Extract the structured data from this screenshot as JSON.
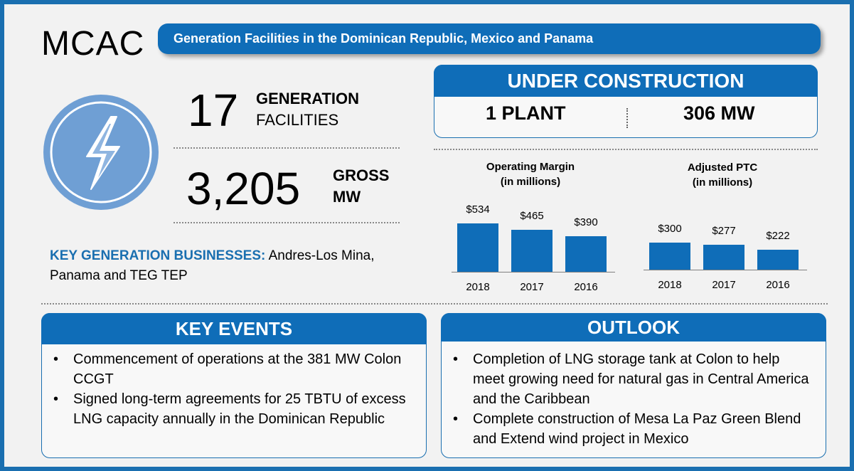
{
  "header": {
    "company": "MCAC",
    "banner": "Generation Facilities in the Dominican Republic, Mexico and Panama"
  },
  "logo": {
    "icon": "lightning-bolt-icon",
    "color": "#6f9fd4"
  },
  "stats": {
    "facilities_value": "17",
    "facilities_label_bold": "GENERATION",
    "facilities_label": "FACILITIES",
    "mw_value": "3,205",
    "mw_label_line1": "GROSS",
    "mw_label_line2": "MW"
  },
  "key_businesses": {
    "label": "KEY GENERATION BUSINESSES:",
    "text_line1": " Andres-Los Mina,",
    "text_line2": "Panama and TEG TEP"
  },
  "under_construction": {
    "title": "UNDER CONSTRUCTION",
    "plants": "1 PLANT",
    "mw": "306 MW"
  },
  "chart_data": [
    {
      "type": "bar",
      "title": "Operating Margin",
      "subtitle": "(in millions)",
      "categories": [
        "2018",
        "2017",
        "2016"
      ],
      "values": [
        534,
        465,
        390
      ],
      "labels": [
        "$534",
        "$465",
        "$390"
      ],
      "ylim": [
        0,
        600
      ]
    },
    {
      "type": "bar",
      "title": "Adjusted PTC",
      "subtitle": "(in millions)",
      "categories": [
        "2018",
        "2017",
        "2016"
      ],
      "values": [
        300,
        277,
        222
      ],
      "labels": [
        "$300",
        "$277",
        "$222"
      ],
      "ylim": [
        0,
        600
      ]
    }
  ],
  "key_events": {
    "title": "KEY EVENTS",
    "items": [
      "Commencement of operations at the 381 MW Colon CCGT",
      "Signed long-term agreements for 25 TBTU of excess LNG capacity annually in the Dominican Republic"
    ]
  },
  "outlook": {
    "title": "OUTLOOK",
    "items": [
      "Completion of LNG storage tank at Colon to help meet growing need for natural gas in Central America and the Caribbean",
      "Complete construction of Mesa La Paz Green Blend and Extend wind project in Mexico"
    ]
  },
  "colors": {
    "brand": "#0f6db8",
    "frame": "#1a6fb0"
  }
}
